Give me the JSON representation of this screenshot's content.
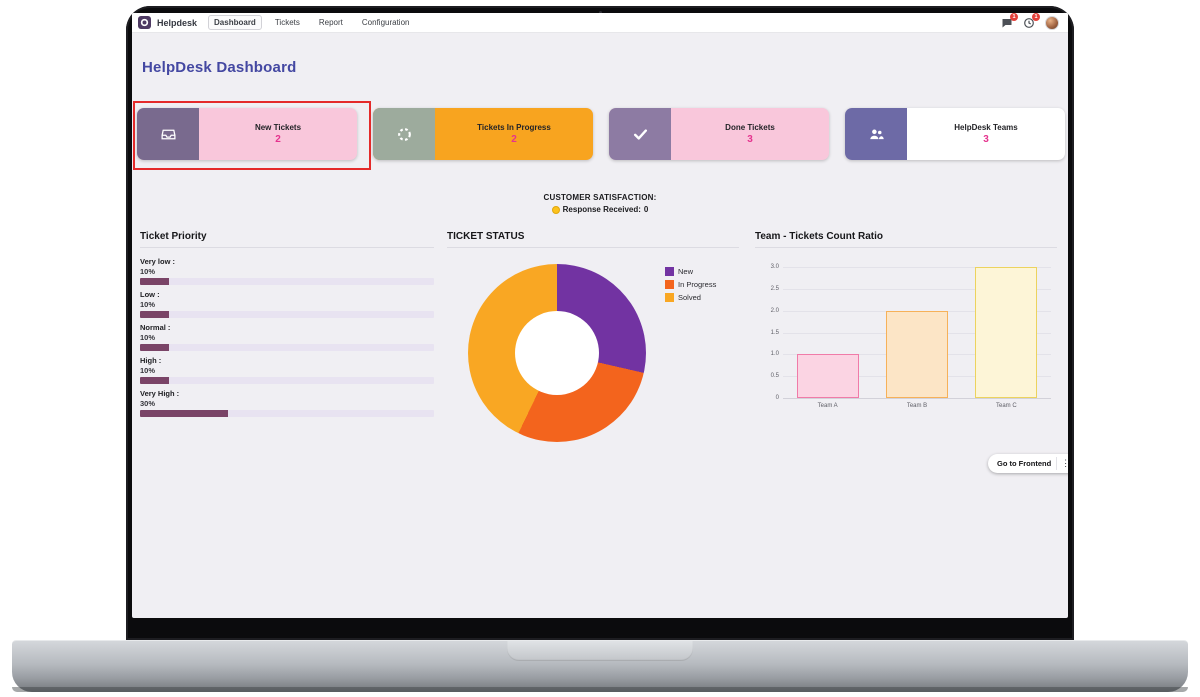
{
  "nav": {
    "app_name": "Helpdesk",
    "menu": [
      {
        "label": "Dashboard",
        "active": true
      },
      {
        "label": "Tickets",
        "active": false
      },
      {
        "label": "Report",
        "active": false
      },
      {
        "label": "Configuration",
        "active": false
      }
    ],
    "badges": {
      "messages": "1",
      "activities": "1"
    }
  },
  "page": {
    "title": "HelpDesk Dashboard"
  },
  "kpis": [
    {
      "label": "New Tickets",
      "value": "2",
      "icon": "inbox-icon",
      "icon_bg": "#796a8e",
      "body_bg": "#f9c7db",
      "highlighted": true
    },
    {
      "label": "Tickets In Progress",
      "value": "2",
      "icon": "spinner-icon",
      "icon_bg": "#9dab9d",
      "body_bg": "#f8a41f",
      "highlighted": false
    },
    {
      "label": "Done Tickets",
      "value": "3",
      "icon": "check-icon",
      "icon_bg": "#8d7ba3",
      "body_bg": "#f9c7db",
      "highlighted": false
    },
    {
      "label": "HelpDesk Teams",
      "value": "3",
      "icon": "team-icon",
      "icon_bg": "#6d6aa6",
      "body_bg": "#ffffff",
      "highlighted": false
    }
  ],
  "satisfaction": {
    "title": "CUSTOMER SATISFACTION:",
    "label": "Response Received:",
    "value": "0"
  },
  "chart_data": [
    {
      "type": "bar",
      "orientation": "horizontal",
      "title": "Ticket Priority",
      "categories": [
        "Very low :",
        "Low :",
        "Normal :",
        "High :",
        "Very High :"
      ],
      "values": [
        10,
        10,
        10,
        10,
        30
      ],
      "value_labels": [
        "10%",
        "10%",
        "10%",
        "10%",
        "30%"
      ],
      "xlim": [
        0,
        100
      ],
      "bar_color": "#7a4467",
      "track_color": "#e8e3f1"
    },
    {
      "type": "pie",
      "donut": true,
      "title": "TICKET STATUS",
      "labels": [
        "New",
        "In Progress",
        "Solved"
      ],
      "values": [
        2,
        2,
        3
      ],
      "colors": [
        "#7233a2",
        "#f3641d",
        "#f9a723"
      ],
      "legend_position": "right"
    },
    {
      "type": "bar",
      "title": "Team - Tickets Count Ratio",
      "categories": [
        "Team A",
        "Team B",
        "Team C"
      ],
      "values": [
        1,
        2,
        3
      ],
      "ylim": [
        0,
        3
      ],
      "ytick_labels": [
        "0",
        "0.5",
        "1.0",
        "1.5",
        "2.0",
        "2.5",
        "3.0"
      ],
      "bar_fills": [
        "#fbd4e3",
        "#fce5c6",
        "#fdf5d7"
      ],
      "bar_borders": [
        "#f07ba8",
        "#f6b159",
        "#ecd35e"
      ],
      "grid": true
    }
  ],
  "footer": {
    "go_to_frontend": "Go to Frontend"
  }
}
